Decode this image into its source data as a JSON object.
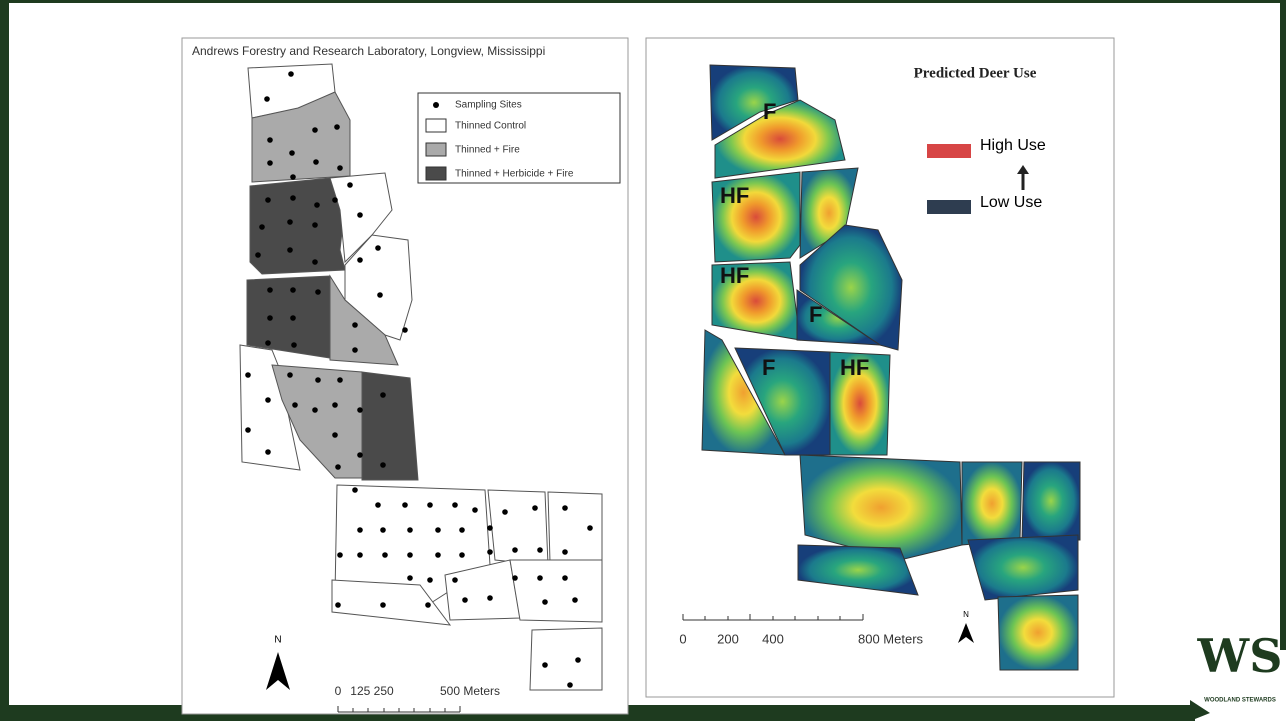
{
  "left_map": {
    "title": "Andrews Forestry and Research Laboratory, Longview, Mississippi",
    "legend": [
      "Sampling Sites",
      "Thinned Control",
      "Thinned + Fire",
      "Thinned + Herbicide + Fire"
    ],
    "scale_labels": [
      "0",
      "125 250",
      "500 Meters"
    ],
    "north": "N"
  },
  "right_map": {
    "title": "Predicted Deer Use",
    "legend": [
      "High Use",
      "Low Use"
    ],
    "stand_labels": [
      "F",
      "HF",
      "HF",
      "F",
      "F",
      "HF"
    ],
    "scale_labels": [
      "0",
      "200",
      "400",
      "800 Meters"
    ],
    "north": "N"
  },
  "logo": {
    "mark": "WS",
    "text": "WOODLAND STEWARDS"
  }
}
